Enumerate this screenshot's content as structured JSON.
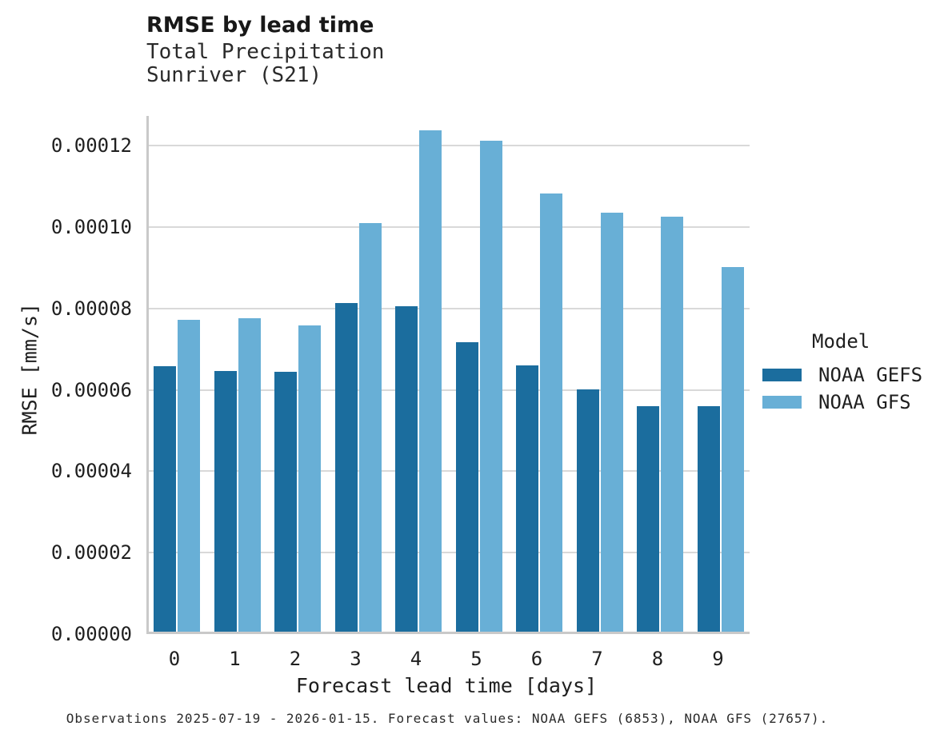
{
  "header": {
    "title": "RMSE by lead time",
    "subtitle_lines": [
      "Total Precipitation",
      "Sunriver (S21)"
    ]
  },
  "chart_data": {
    "type": "bar",
    "title": "RMSE by lead time",
    "subtitle": [
      "Total Precipitation",
      "Sunriver (S21)"
    ],
    "xlabel": "Forecast lead time [days]",
    "ylabel": "RMSE [mm/s]",
    "categories": [
      "0",
      "1",
      "2",
      "3",
      "4",
      "5",
      "6",
      "7",
      "8",
      "9"
    ],
    "series": [
      {
        "name": "NOAA GEFS",
        "color": "#1B6D9E",
        "values": [
          6.56e-05,
          6.44e-05,
          6.42e-05,
          8.11e-05,
          8.03e-05,
          7.15e-05,
          6.58e-05,
          5.99e-05,
          5.58e-05,
          5.58e-05
        ]
      },
      {
        "name": "NOAA GFS",
        "color": "#68AFD6",
        "values": [
          7.7e-05,
          7.74e-05,
          7.56e-05,
          0.0001007,
          0.0001235,
          0.000121,
          0.000108,
          0.0001033,
          0.0001023,
          8.99e-05
        ]
      }
    ],
    "ylim": [
      0,
      0.00012727
    ],
    "yticks": [
      0,
      2e-05,
      4e-05,
      6e-05,
      8e-05,
      0.0001,
      0.00012
    ],
    "ytick_labels": [
      "0.00000",
      "0.00002",
      "0.00004",
      "0.00006",
      "0.00008",
      "0.00010",
      "0.00012"
    ],
    "legend": {
      "title": "Model",
      "position": "right"
    },
    "grid": true,
    "colors": {
      "grid": "#D9D9D9",
      "axis": "#C9C9C9",
      "text": "#1F1F1F"
    }
  },
  "caption": {
    "text": "Observations 2025-07-19 - 2026-01-15. Forecast values: NOAA GEFS (6853), NOAA GFS (27657)."
  }
}
